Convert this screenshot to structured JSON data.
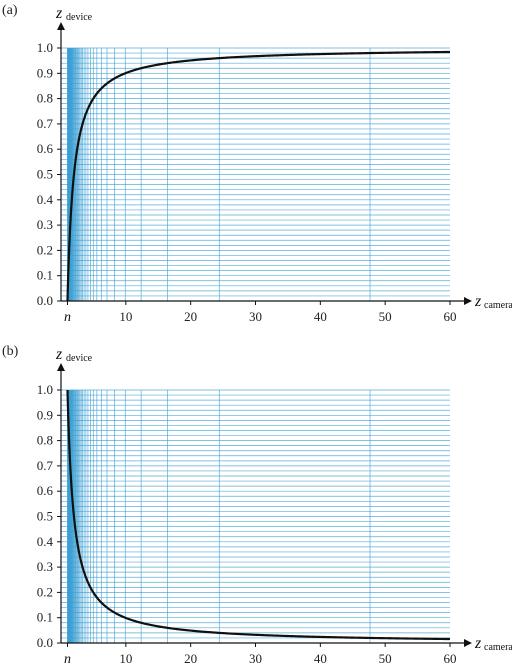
{
  "chart_data": [
    {
      "panel_label": "(a)",
      "type": "line",
      "curve": "standard depth: z_device = (f/(f-n))·(1 - n/z_camera)",
      "near": 1,
      "far": 1000,
      "x_range": [
        0,
        60
      ],
      "y_range": [
        0,
        1
      ],
      "x_ticks": [
        10,
        20,
        30,
        40,
        50,
        60
      ],
      "x_tick_labels": [
        "10",
        "20",
        "30",
        "40",
        "50",
        "60"
      ],
      "near_tick_label": "n",
      "y_ticks": [
        0,
        0.1,
        0.2,
        0.3,
        0.4,
        0.5,
        0.6,
        0.7,
        0.8,
        0.9,
        1.0
      ],
      "y_tick_labels": [
        "0.0",
        "0.1",
        "0.2",
        "0.3",
        "0.4",
        "0.5",
        "0.6",
        "0.7",
        "0.8",
        "0.9",
        "1.0"
      ],
      "y_axis_title": "z",
      "y_axis_subscript": "device",
      "x_axis_title": "z",
      "x_axis_subscript": "camera",
      "grid": "lines at equal device-depth steps of 0.02 (horizontal) and their camera-space positions (vertical)",
      "series": [
        {
          "points": [
            [
              1,
              0.0
            ],
            [
              1.1,
              0.09
            ],
            [
              1.25,
              0.2
            ],
            [
              1.5,
              0.33
            ],
            [
              2,
              0.5
            ],
            [
              3,
              0.67
            ],
            [
              4,
              0.75
            ],
            [
              5,
              0.8
            ],
            [
              7,
              0.86
            ],
            [
              10,
              0.9
            ],
            [
              15,
              0.93
            ],
            [
              20,
              0.95
            ],
            [
              30,
              0.967
            ],
            [
              40,
              0.975
            ],
            [
              50,
              0.98
            ],
            [
              60,
              0.984
            ]
          ]
        }
      ],
      "colors": {
        "curve": "#111111",
        "grid": "#3b9fd4",
        "axis": "#111111"
      }
    },
    {
      "panel_label": "(b)",
      "type": "line",
      "curve": "reversed depth: z_device = (n/(f-n))·(f/z_camera - 1)",
      "near": 1,
      "far": 1000,
      "x_range": [
        0,
        60
      ],
      "y_range": [
        0,
        1
      ],
      "x_ticks": [
        10,
        20,
        30,
        40,
        50,
        60
      ],
      "x_tick_labels": [
        "10",
        "20",
        "30",
        "40",
        "50",
        "60"
      ],
      "near_tick_label": "n",
      "y_ticks": [
        0,
        0.1,
        0.2,
        0.3,
        0.4,
        0.5,
        0.6,
        0.7,
        0.8,
        0.9,
        1.0
      ],
      "y_tick_labels": [
        "0.0",
        "0.1",
        "0.2",
        "0.3",
        "0.4",
        "0.5",
        "0.6",
        "0.7",
        "0.8",
        "0.9",
        "1.0"
      ],
      "y_axis_title": "z",
      "y_axis_subscript": "device",
      "x_axis_title": "z",
      "x_axis_subscript": "camera",
      "grid": "lines at equal device-depth steps of 0.02 (horizontal) and their camera-space positions (vertical)",
      "series": [
        {
          "points": [
            [
              1,
              1.0
            ],
            [
              1.25,
              0.8
            ],
            [
              1.5,
              0.67
            ],
            [
              2,
              0.5
            ],
            [
              3,
              0.33
            ],
            [
              4,
              0.25
            ],
            [
              5,
              0.2
            ],
            [
              7,
              0.14
            ],
            [
              10,
              0.1
            ],
            [
              15,
              0.066
            ],
            [
              20,
              0.05
            ],
            [
              30,
              0.033
            ],
            [
              40,
              0.025
            ],
            [
              50,
              0.02
            ],
            [
              60,
              0.016
            ]
          ]
        }
      ],
      "colors": {
        "curve": "#111111",
        "grid": "#3b9fd4",
        "axis": "#111111"
      }
    }
  ]
}
